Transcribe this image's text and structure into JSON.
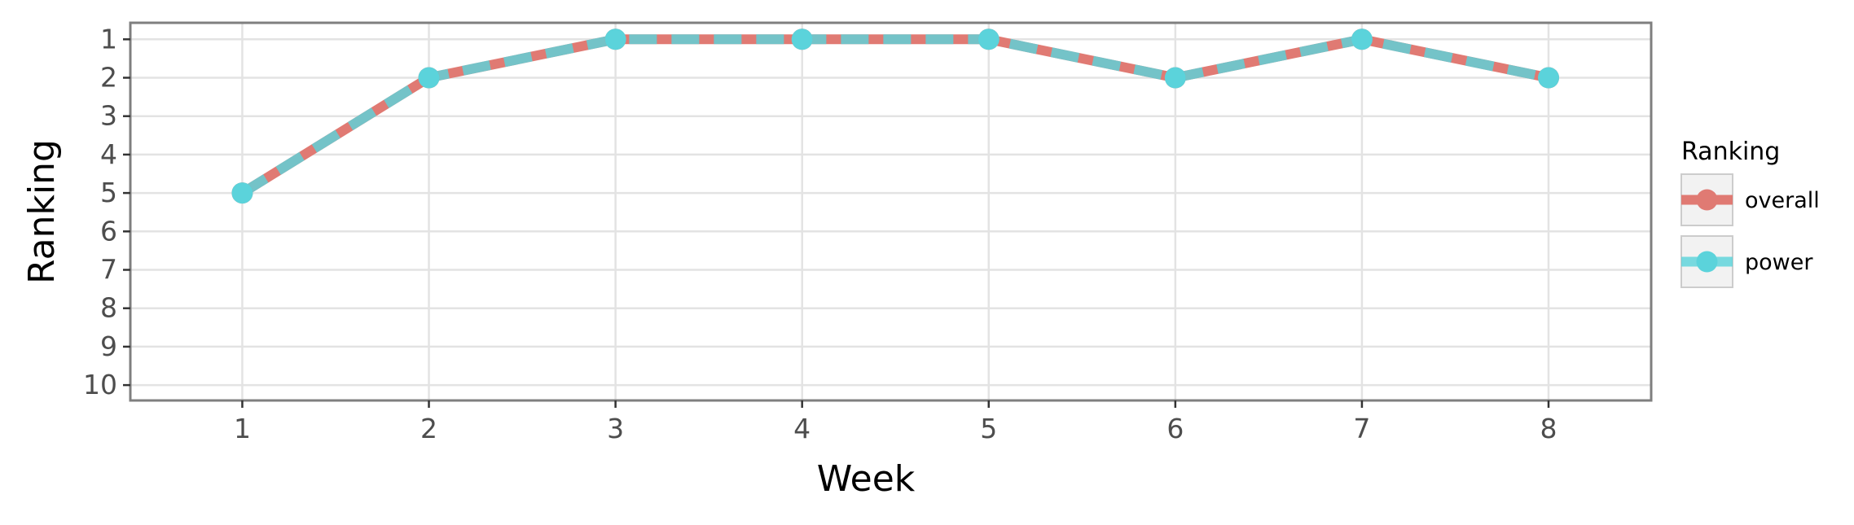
{
  "chart_data": {
    "type": "line",
    "title": "",
    "xlabel": "Week",
    "ylabel": "Ranking",
    "x": [
      1,
      2,
      3,
      4,
      5,
      6,
      7,
      8
    ],
    "xlim": [
      0.4,
      8.55
    ],
    "ylim": [
      10.4,
      0.57
    ],
    "y_reversed": true,
    "x_ticks": [
      "1",
      "2",
      "3",
      "4",
      "5",
      "6",
      "7",
      "8"
    ],
    "y_ticks": [
      "1",
      "2",
      "3",
      "4",
      "5",
      "6",
      "7",
      "8",
      "9",
      "10"
    ],
    "grid": true,
    "legend": {
      "title": "Ranking",
      "position": "right"
    },
    "series": [
      {
        "name": "overall",
        "color": "#E07A73",
        "values": [
          5,
          2,
          1,
          1,
          1,
          2,
          1,
          2
        ]
      },
      {
        "name": "power",
        "color": "#5BD3DB",
        "values": [
          5,
          2,
          1,
          1,
          1,
          2,
          1,
          2
        ]
      }
    ]
  }
}
